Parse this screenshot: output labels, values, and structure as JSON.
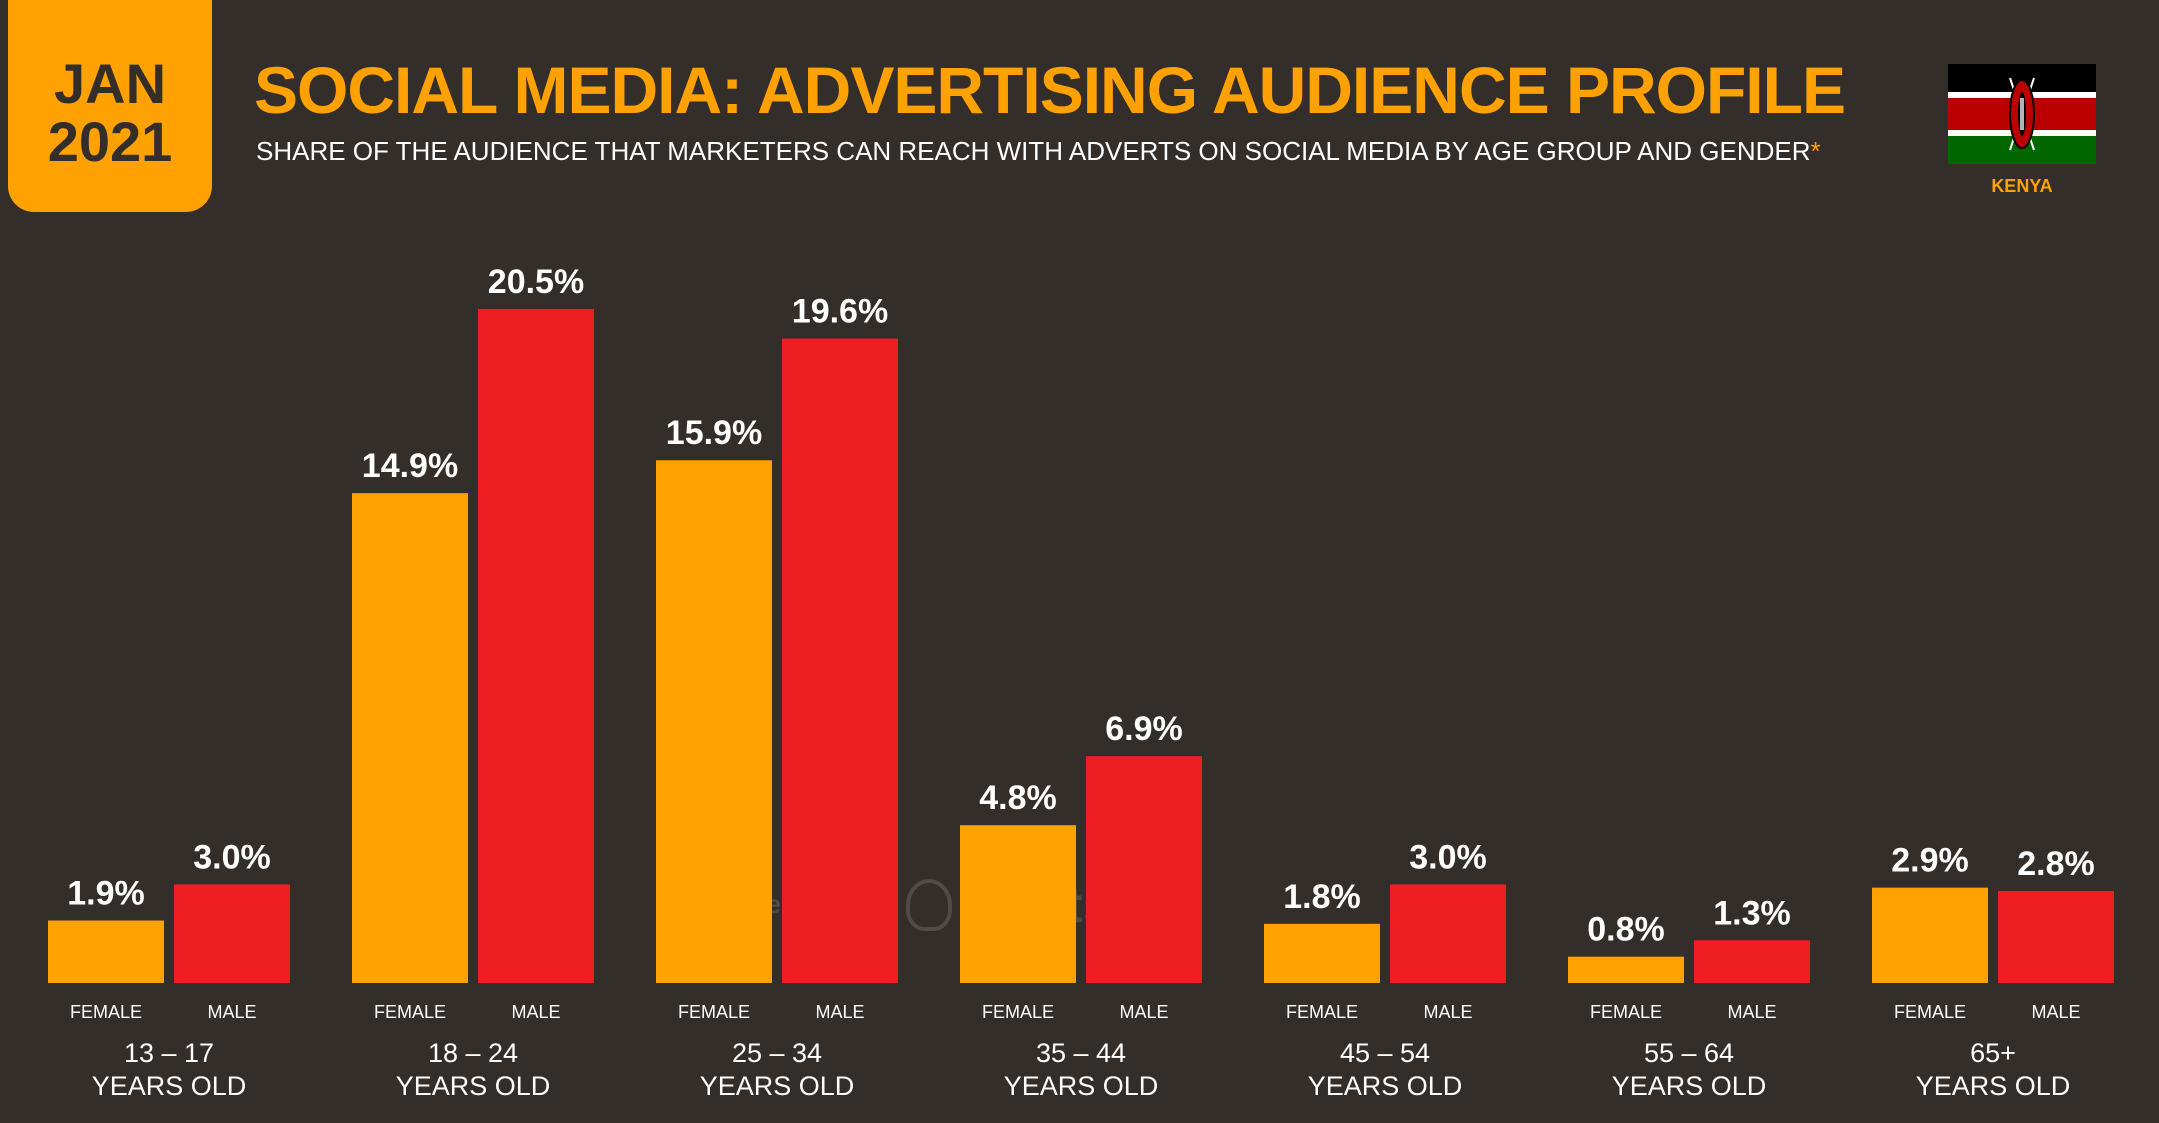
{
  "header": {
    "month": "JAN",
    "year": "2021",
    "title": "SOCIAL MEDIA: ADVERTISING AUDIENCE PROFILE",
    "subtitle": "SHARE OF THE AUDIENCE THAT MARKETERS CAN REACH WITH ADVERTS ON SOCIAL MEDIA BY AGE GROUP AND GENDER",
    "subtitle_marker": "*",
    "country": "KENYA"
  },
  "watermark": {
    "left": "we are social",
    "right": "Hootsuite"
  },
  "colors": {
    "background": "#342e2a",
    "female": "#ffa100",
    "male": "#ee1f23",
    "accent": "#ffa100"
  },
  "chart_data": {
    "type": "bar",
    "categories": [
      "13 – 17",
      "18 – 24",
      "25 – 34",
      "35 – 44",
      "45 – 54",
      "55 – 64",
      "65+"
    ],
    "category_suffix": "YEARS OLD",
    "series": [
      {
        "name": "FEMALE",
        "values": [
          1.9,
          14.9,
          15.9,
          4.8,
          1.8,
          0.8,
          2.9
        ],
        "labels": [
          "1.9%",
          "14.9%",
          "15.9%",
          "4.8%",
          "1.8%",
          "0.8%",
          "2.9%"
        ]
      },
      {
        "name": "MALE",
        "values": [
          3.0,
          20.5,
          19.6,
          6.9,
          3.0,
          1.3,
          2.8
        ],
        "labels": [
          "3.0%",
          "20.5%",
          "19.6%",
          "6.9%",
          "3.0%",
          "1.3%",
          "2.8%"
        ]
      }
    ],
    "ylim": [
      0,
      20.5
    ],
    "grid": false,
    "legend": "none"
  }
}
